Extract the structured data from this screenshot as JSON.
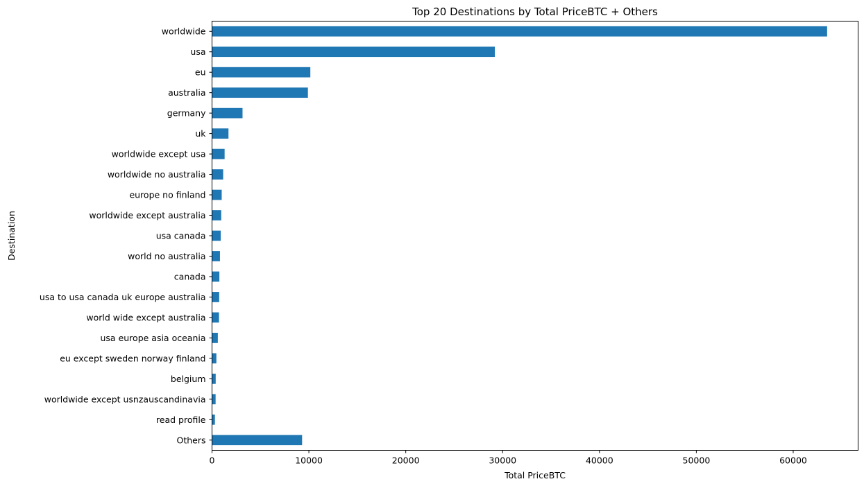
{
  "chart_data": {
    "type": "bar",
    "orientation": "horizontal",
    "title": "Top 20 Destinations by Total PriceBTC + Others",
    "xlabel": "Total PriceBTC",
    "ylabel": "Destination",
    "categories": [
      "worldwide",
      "usa",
      "eu",
      "australia",
      "germany",
      "uk",
      "worldwide except usa",
      "worldwide no australia",
      "europe no finland",
      "worldwide except australia",
      "usa canada",
      "world no australia",
      "canada",
      "usa to usa canada uk europe australia",
      "world wide except australia",
      "usa europe asia oceania",
      "eu except sweden norway finland",
      "belgium",
      "worldwide except usnzauscandinavia",
      "read profile",
      "Others"
    ],
    "values": [
      63500,
      29200,
      10150,
      9900,
      3150,
      1700,
      1300,
      1150,
      1000,
      950,
      900,
      820,
      760,
      740,
      720,
      600,
      450,
      380,
      370,
      300,
      9300
    ],
    "xlim": [
      0,
      66700
    ],
    "xticks": [
      0,
      10000,
      20000,
      30000,
      40000,
      50000,
      60000
    ],
    "bar_color": "#1f77b4",
    "grid": false,
    "legend": "none"
  }
}
